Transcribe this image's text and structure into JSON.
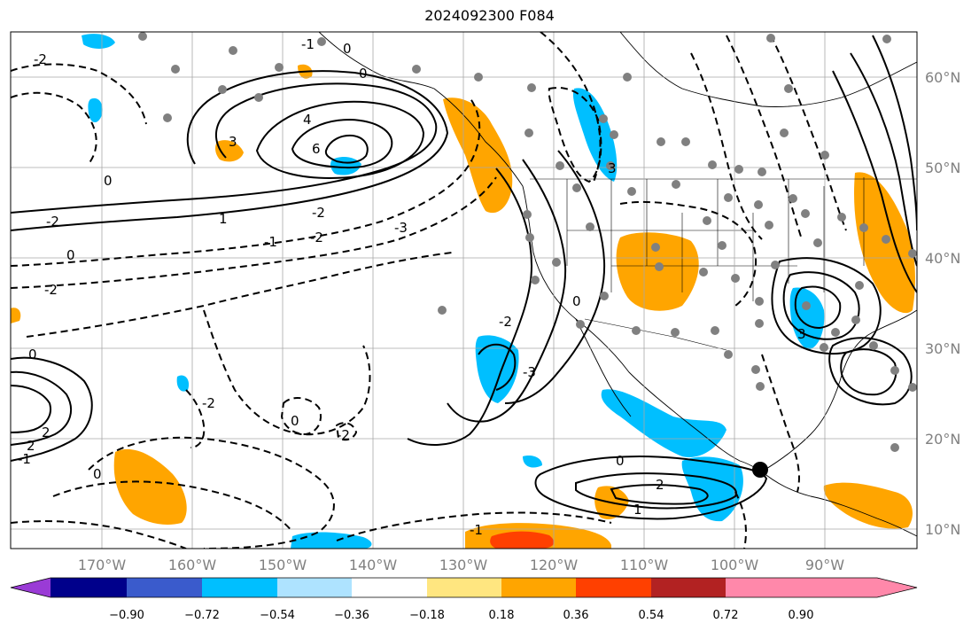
{
  "title": "2024092300 F084",
  "map": {
    "longitude_labels": [
      "170°W",
      "160°W",
      "150°W",
      "140°W",
      "130°W",
      "120°W",
      "110°W",
      "100°W",
      "90°W"
    ],
    "latitude_labels": [
      "60°N",
      "50°N",
      "40°N",
      "30°N",
      "20°N",
      "10°N"
    ],
    "grid": true,
    "colorbar": {
      "ticks": [
        "−0.90",
        "−0.72",
        "−0.54",
        "−0.36",
        "−0.18",
        "0.18",
        "0.36",
        "0.54",
        "0.72",
        "0.90"
      ],
      "colors": [
        "#9a3bd6",
        "#00008b",
        "#3a5bcc",
        "#00bfff",
        "#aee3ff",
        "#ffffff",
        "#ffe680",
        "#ffa500",
        "#ff4000",
        "#b22222",
        "#ff88aa"
      ]
    },
    "contour_labels": [
      "-1",
      "0",
      "0",
      "-2",
      "4",
      "6",
      "0",
      "-1",
      "-2",
      "1",
      "-2",
      "-3",
      "-2",
      "0",
      "-2",
      "-2",
      "0",
      "-1",
      "0",
      "2",
      "2",
      "3",
      "0",
      "-2",
      "3",
      "0",
      "-2",
      "2",
      "1",
      "-1",
      "-3",
      "0",
      "3"
    ]
  }
}
